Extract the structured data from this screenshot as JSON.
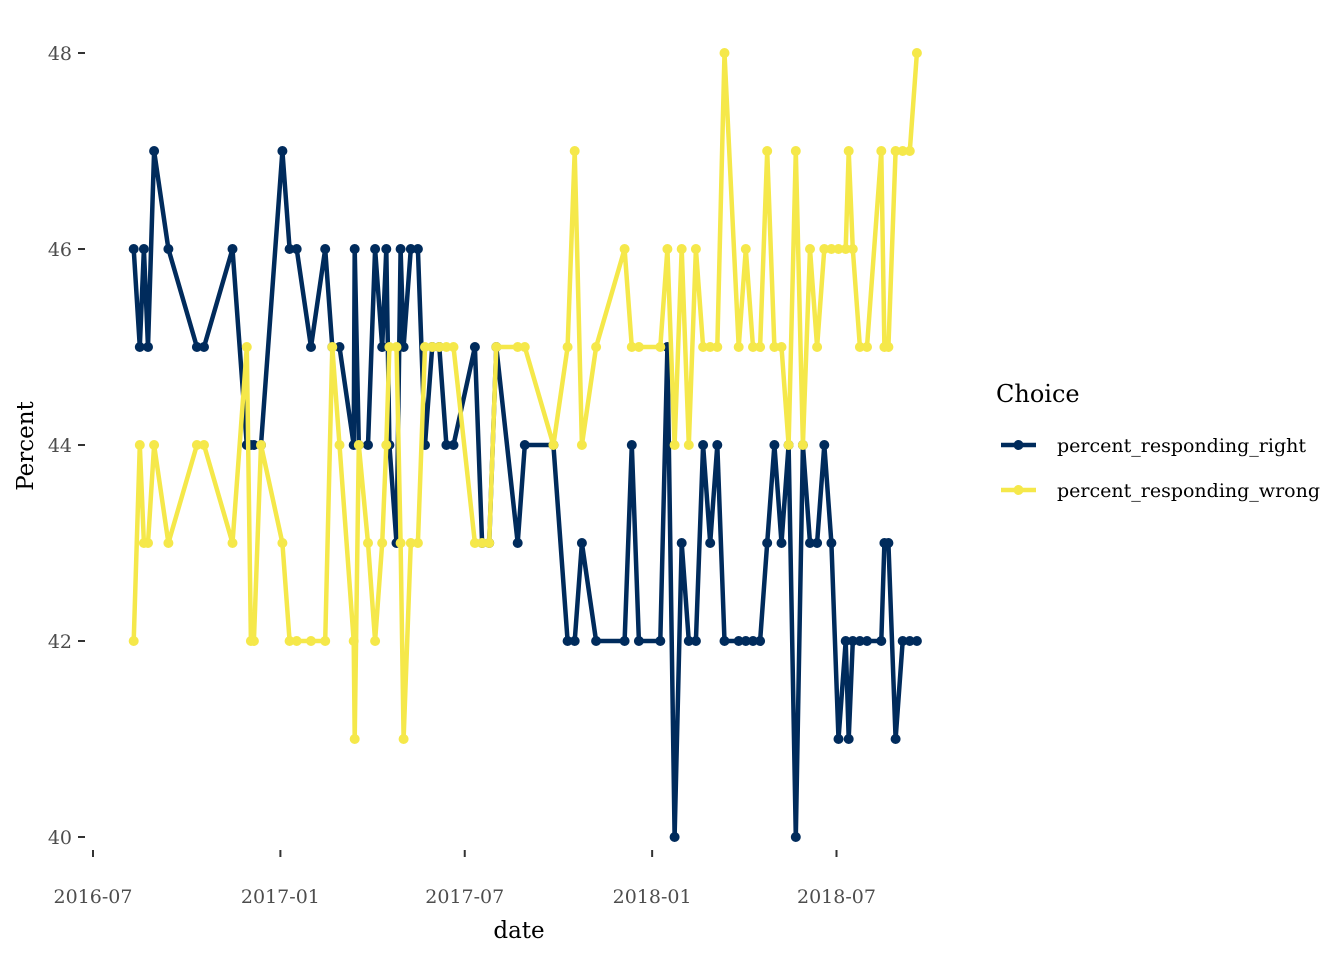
{
  "chart_data": {
    "type": "line",
    "xlabel": "date",
    "ylabel": "Percent",
    "ylim": [
      40,
      48
    ],
    "yticks": [
      40,
      42,
      44,
      46,
      48
    ],
    "xlim": [
      "2016-06-30",
      "2018-09-30"
    ],
    "xticks": [
      {
        "date": "2016-07-01",
        "label": "2016-07"
      },
      {
        "date": "2017-01-01",
        "label": "2017-01"
      },
      {
        "date": "2017-07-01",
        "label": "2017-07"
      },
      {
        "date": "2018-01-01",
        "label": "2018-01"
      },
      {
        "date": "2018-07-01",
        "label": "2018-07"
      }
    ],
    "grid": false,
    "legend": {
      "title": "Choice",
      "position": "right"
    },
    "x": [
      "2016-08-10",
      "2016-08-16",
      "2016-08-20",
      "2016-08-24",
      "2016-08-30",
      "2016-09-13",
      "2016-10-11",
      "2016-10-18",
      "2016-11-15",
      "2016-11-29",
      "2016-12-03",
      "2016-12-06",
      "2016-12-13",
      "2017-01-03",
      "2017-01-10",
      "2017-01-17",
      "2017-01-31",
      "2017-02-14",
      "2017-02-21",
      "2017-02-28",
      "2017-03-14",
      "2017-03-15",
      "2017-03-19",
      "2017-03-28",
      "2017-04-04",
      "2017-04-11",
      "2017-04-15",
      "2017-04-18",
      "2017-04-25",
      "2017-04-29",
      "2017-05-02",
      "2017-05-09",
      "2017-05-16",
      "2017-05-23",
      "2017-05-30",
      "2017-06-06",
      "2017-06-13",
      "2017-06-20",
      "2017-07-11",
      "2017-07-18",
      "2017-07-25",
      "2017-08-01",
      "2017-08-22",
      "2017-08-29",
      "2017-09-26",
      "2017-10-10",
      "2017-10-17",
      "2017-10-24",
      "2017-11-07",
      "2017-12-05",
      "2017-12-12",
      "2017-12-19",
      "2018-01-09",
      "2018-01-16",
      "2018-01-23",
      "2018-01-30",
      "2018-02-06",
      "2018-02-13",
      "2018-02-20",
      "2018-02-27",
      "2018-03-06",
      "2018-03-13",
      "2018-03-27",
      "2018-04-03",
      "2018-04-10",
      "2018-04-17",
      "2018-04-24",
      "2018-05-01",
      "2018-05-08",
      "2018-05-15",
      "2018-05-22",
      "2018-05-29",
      "2018-06-05",
      "2018-06-12",
      "2018-06-19",
      "2018-06-26",
      "2018-07-03",
      "2018-07-10",
      "2018-07-13",
      "2018-07-17",
      "2018-07-24",
      "2018-07-31",
      "2018-08-14",
      "2018-08-17",
      "2018-08-21",
      "2018-08-28",
      "2018-09-04",
      "2018-09-11",
      "2018-09-18"
    ],
    "series": [
      {
        "name": "percent_responding_right",
        "color": "#002b5c",
        "values": [
          46,
          45,
          46,
          45,
          47,
          46,
          45,
          45,
          46,
          44,
          44,
          44,
          44,
          47,
          46,
          46,
          45,
          46,
          45,
          45,
          44,
          46,
          44,
          44,
          46,
          45,
          46,
          44,
          43,
          46,
          45,
          46,
          46,
          44,
          45,
          45,
          44,
          44,
          45,
          43,
          43,
          45,
          43,
          44,
          44,
          42,
          42,
          43,
          42,
          42,
          44,
          42,
          42,
          45,
          40,
          43,
          42,
          42,
          44,
          43,
          44,
          42,
          42,
          42,
          42,
          42,
          43,
          44,
          43,
          44,
          40,
          44,
          43,
          43,
          44,
          43,
          41,
          42,
          41,
          42,
          42,
          42,
          42,
          43,
          43,
          41,
          42,
          42,
          42
        ]
      },
      {
        "name": "percent_responding_wrong",
        "color": "#f5e84a",
        "values": [
          42,
          44,
          43,
          43,
          44,
          43,
          44,
          44,
          43,
          45,
          42,
          42,
          44,
          43,
          42,
          42,
          42,
          42,
          45,
          44,
          42,
          41,
          44,
          43,
          42,
          43,
          44,
          45,
          45,
          43,
          41,
          43,
          43,
          45,
          45,
          45,
          45,
          45,
          43,
          43,
          43,
          45,
          45,
          45,
          44,
          45,
          47,
          44,
          45,
          46,
          45,
          45,
          45,
          46,
          44,
          46,
          44,
          46,
          45,
          45,
          45,
          48,
          45,
          46,
          45,
          45,
          47,
          45,
          45,
          44,
          47,
          44,
          46,
          45,
          46,
          46,
          46,
          46,
          47,
          46,
          45,
          45,
          47,
          45,
          45,
          47,
          47,
          47,
          48
        ]
      }
    ]
  }
}
